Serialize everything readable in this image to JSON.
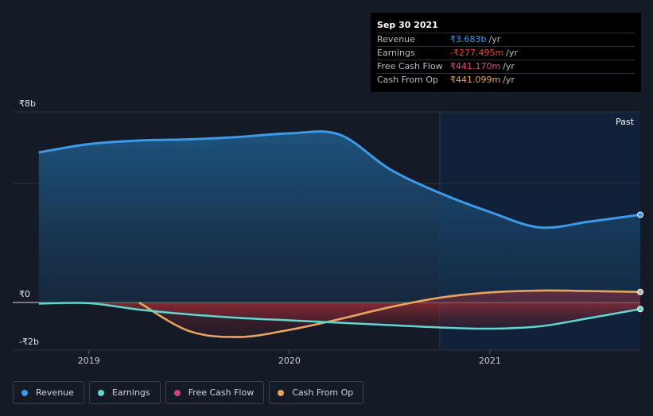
{
  "tooltip": {
    "date": "Sep 30 2021",
    "rows": [
      {
        "label": "Revenue",
        "value": "₹3.683b",
        "unit": "/yr",
        "color": "#3d9ae8"
      },
      {
        "label": "Earnings",
        "value": "-₹277.495m",
        "unit": "/yr",
        "color": "#e8453c"
      },
      {
        "label": "Free Cash Flow",
        "value": "₹441.170m",
        "unit": "/yr",
        "color": "#e04f8a"
      },
      {
        "label": "Cash From Op",
        "value": "₹441.099m",
        "unit": "/yr",
        "color": "#e8a45c"
      }
    ]
  },
  "past_label": "Past",
  "legend": [
    {
      "label": "Revenue",
      "color": "#3d9ae8"
    },
    {
      "label": "Earnings",
      "color": "#5fd8cf"
    },
    {
      "label": "Free Cash Flow",
      "color": "#c9457a"
    },
    {
      "label": "Cash From Op",
      "color": "#e8a45c"
    }
  ],
  "chart_data": {
    "type": "area",
    "ylim": [
      -2,
      8
    ],
    "y_tick_labels": [
      {
        "value": 8,
        "label": "₹8b"
      },
      {
        "value": 0,
        "label": "₹0"
      },
      {
        "value": -2,
        "label": "-₹2b"
      }
    ],
    "x_ticks": [
      {
        "value": 2019.0,
        "label": "2019"
      },
      {
        "value": 2020.0,
        "label": "2020"
      },
      {
        "value": 2021.0,
        "label": "2021"
      }
    ],
    "xlim": [
      2018.62,
      2021.75
    ],
    "past_region_start": 2020.75,
    "grid": true,
    "legend_position": "bottom-left",
    "series": [
      {
        "name": "Revenue",
        "color": "#3d9ae8",
        "fill": true,
        "points": [
          [
            2018.75,
            6.3
          ],
          [
            2019.0,
            6.65
          ],
          [
            2019.25,
            6.8
          ],
          [
            2019.5,
            6.85
          ],
          [
            2019.75,
            6.95
          ],
          [
            2020.0,
            7.1
          ],
          [
            2020.25,
            7.05
          ],
          [
            2020.5,
            5.6
          ],
          [
            2020.75,
            4.6
          ],
          [
            2021.0,
            3.8
          ],
          [
            2021.25,
            3.15
          ],
          [
            2021.5,
            3.4
          ],
          [
            2021.75,
            3.683
          ]
        ]
      },
      {
        "name": "Earnings",
        "color": "#5fd8cf",
        "fill": false,
        "points": [
          [
            2018.75,
            -0.05
          ],
          [
            2019.0,
            -0.03
          ],
          [
            2019.25,
            -0.3
          ],
          [
            2019.5,
            -0.5
          ],
          [
            2019.75,
            -0.65
          ],
          [
            2020.0,
            -0.75
          ],
          [
            2020.25,
            -0.85
          ],
          [
            2020.5,
            -0.95
          ],
          [
            2020.75,
            -1.05
          ],
          [
            2021.0,
            -1.1
          ],
          [
            2021.25,
            -1.0
          ],
          [
            2021.5,
            -0.65
          ],
          [
            2021.75,
            -0.277
          ]
        ]
      },
      {
        "name": "Free Cash Flow",
        "color": "#c9457a",
        "fill": true,
        "points": [
          [
            2019.25,
            0.0
          ],
          [
            2019.5,
            -1.2
          ],
          [
            2019.75,
            -1.45
          ],
          [
            2020.0,
            -1.15
          ],
          [
            2020.25,
            -0.7
          ],
          [
            2020.5,
            -0.2
          ],
          [
            2020.75,
            0.2
          ],
          [
            2021.0,
            0.42
          ],
          [
            2021.25,
            0.5
          ],
          [
            2021.5,
            0.48
          ],
          [
            2021.75,
            0.441
          ]
        ]
      },
      {
        "name": "Cash From Op",
        "color": "#e8a45c",
        "fill": false,
        "points": [
          [
            2019.25,
            0.0
          ],
          [
            2019.5,
            -1.2
          ],
          [
            2019.75,
            -1.45
          ],
          [
            2020.0,
            -1.15
          ],
          [
            2020.25,
            -0.7
          ],
          [
            2020.5,
            -0.2
          ],
          [
            2020.75,
            0.2
          ],
          [
            2021.0,
            0.42
          ],
          [
            2021.25,
            0.5
          ],
          [
            2021.5,
            0.48
          ],
          [
            2021.75,
            0.441
          ]
        ]
      }
    ]
  }
}
